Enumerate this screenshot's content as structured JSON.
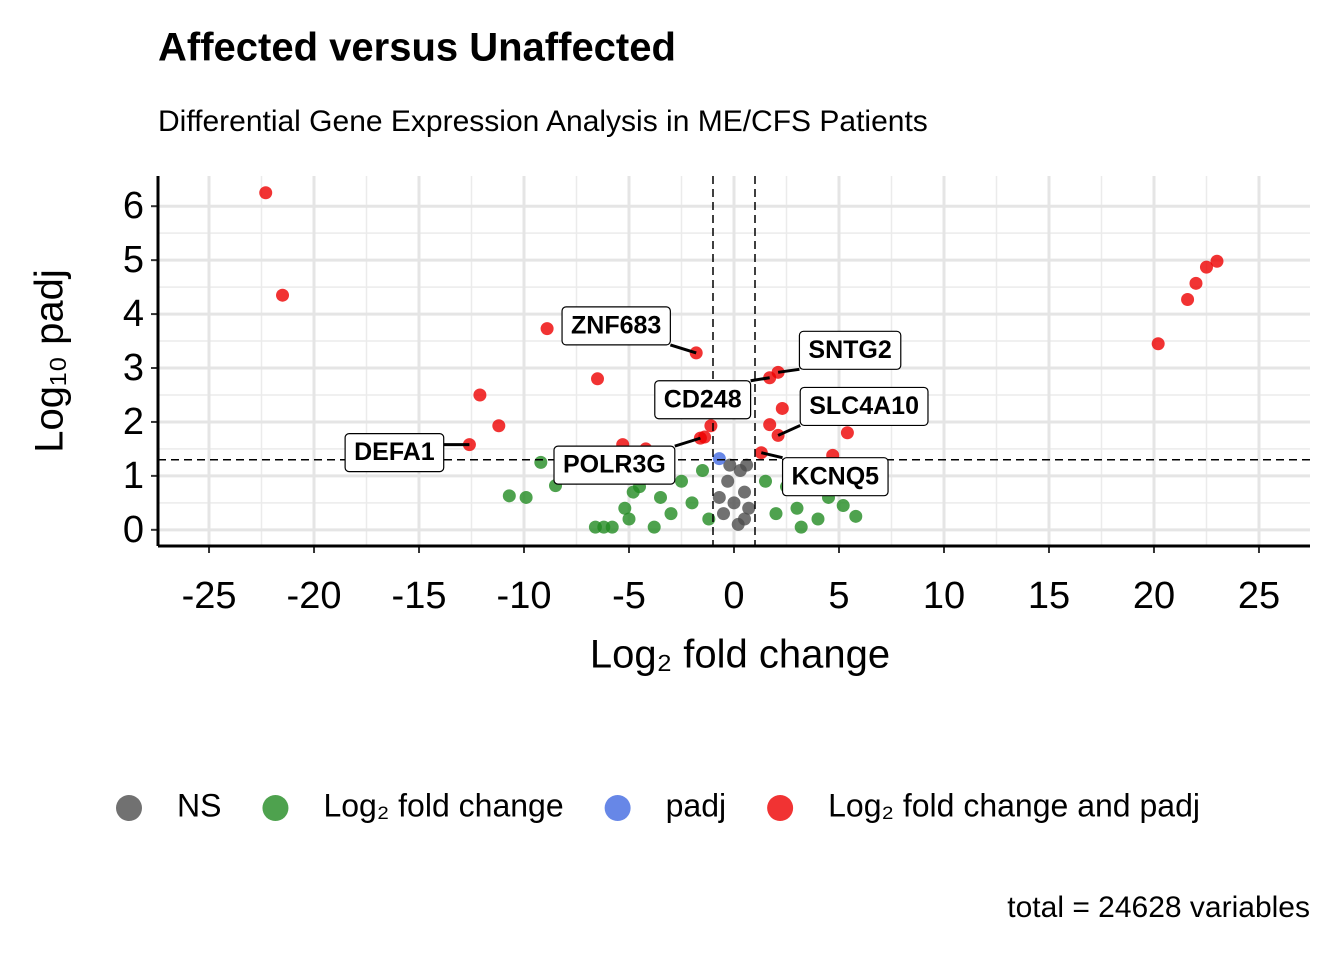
{
  "chart_data": {
    "type": "scatter",
    "title": "Affected versus Unaffected",
    "subtitle": "Differential Gene Expression Analysis in ME/CFS Patients",
    "x_label": "Log₂ fold change",
    "y_label": "Log₁₀ padj",
    "caption": "total = 24628 variables",
    "xlim": [
      -27.43,
      27.43
    ],
    "ylim": [
      -0.3,
      6.56
    ],
    "xticks": [
      -25,
      -20,
      -15,
      -10,
      -5,
      0,
      5,
      10,
      15,
      20,
      25
    ],
    "yticks": [
      0,
      1,
      2,
      3,
      4,
      5,
      6
    ],
    "grid": true,
    "cutoff_x": [
      -1,
      1
    ],
    "cutoff_y": 1.3,
    "series": [
      {
        "name": "NS",
        "color": "#4d4d4d",
        "x": [
          -0.5,
          0,
          0.3,
          0.5,
          -0.3,
          0.6,
          0.2,
          -0.7,
          0.7,
          -0.2,
          0.5
        ],
        "values": [
          0.3,
          0.5,
          1.1,
          0.7,
          0.9,
          1.2,
          0.1,
          0.6,
          0.4,
          1.2,
          0.2
        ]
      },
      {
        "name": "Log₂ fold change",
        "color": "#228b22",
        "x": [
          -10.7,
          -9.9,
          -9.2,
          -8.5,
          -6.6,
          -6.2,
          -5.8,
          -5.2,
          -5,
          -4.5,
          -4,
          -3.5,
          -3,
          -2.5,
          -2,
          -1.5,
          -1.2,
          2,
          2.5,
          3,
          3.5,
          4,
          4.5,
          5.2,
          5.8,
          4.2,
          1.5,
          3.2,
          -3.8,
          -4.8
        ],
        "values": [
          0.63,
          0.6,
          1.25,
          0.82,
          0.05,
          0.05,
          0.05,
          0.4,
          0.2,
          0.8,
          1.0,
          0.6,
          0.3,
          0.9,
          0.5,
          1.1,
          0.2,
          0.3,
          0.8,
          0.4,
          1.0,
          0.2,
          0.6,
          0.45,
          0.25,
          1.2,
          0.9,
          0.05,
          0.05,
          0.7
        ]
      },
      {
        "name": "padj",
        "color": "#4169e1",
        "x": [
          -0.7
        ],
        "values": [
          1.32
        ]
      },
      {
        "name": "Log₂ fold change and padj",
        "color": "#ee0000",
        "x": [
          -22.3,
          -21.5,
          -8.9,
          -6.5,
          -12.1,
          -11.2,
          -12.6,
          -5.3,
          -4.2,
          -1.8,
          -1.6,
          -1.4,
          -1.1,
          1.7,
          2.1,
          2.3,
          1.7,
          2.1,
          1.3,
          4.7,
          5.4,
          20.2,
          21.6,
          22.0,
          22.5,
          23.0
        ],
        "values": [
          6.25,
          4.35,
          3.73,
          2.8,
          2.5,
          1.93,
          1.58,
          1.58,
          1.5,
          3.28,
          1.7,
          1.72,
          1.93,
          2.82,
          2.92,
          2.25,
          1.95,
          1.75,
          1.43,
          1.38,
          1.8,
          3.45,
          4.27,
          4.57,
          4.87,
          4.98
        ]
      }
    ],
    "annotations": [
      {
        "text": "ZNF683",
        "x": -1.8,
        "y": 3.28
      },
      {
        "text": "SNTG2",
        "x": 2.1,
        "y": 2.92
      },
      {
        "text": "CD248",
        "x": 1.7,
        "y": 2.82
      },
      {
        "text": "SLC4A10",
        "x": 2.1,
        "y": 1.75
      },
      {
        "text": "POLR3G",
        "x": -1.6,
        "y": 1.7
      },
      {
        "text": "DEFA1",
        "x": -12.6,
        "y": 1.58
      },
      {
        "text": "KCNQ5",
        "x": 1.3,
        "y": 1.43
      }
    ]
  }
}
